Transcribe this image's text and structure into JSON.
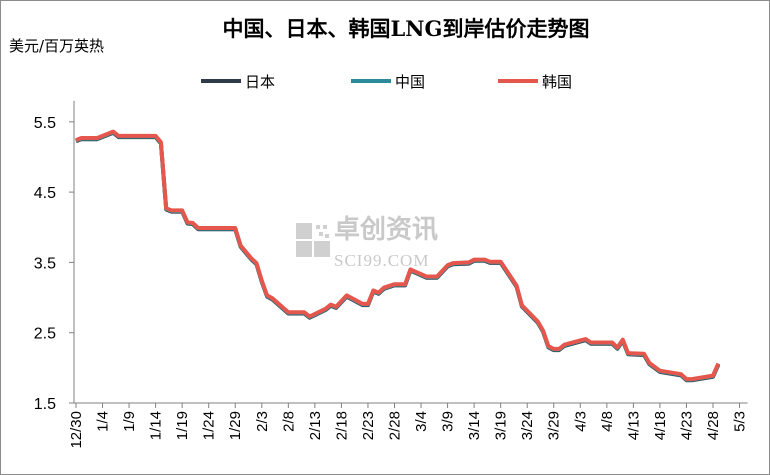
{
  "chart_data": {
    "type": "line",
    "title": "中国、日本、韩国LNG到岸估价走势图",
    "ylabel": "美元/百万英热",
    "ylim": [
      1.5,
      5.8
    ],
    "y_ticks": [
      "1.5",
      "2.5",
      "3.5",
      "4.5",
      "5.5"
    ],
    "x_ticks": [
      "12/30",
      "1/4",
      "1/9",
      "1/14",
      "1/19",
      "1/24",
      "1/29",
      "2/3",
      "2/8",
      "2/13",
      "2/18",
      "2/23",
      "2/28",
      "3/4",
      "3/9",
      "3/14",
      "3/19",
      "3/24",
      "3/29",
      "4/3",
      "4/8",
      "4/13",
      "4/18",
      "4/23",
      "4/28",
      "5/3"
    ],
    "x_tick_every": 5,
    "grid": false,
    "legend_position": "top",
    "watermark": {
      "cn": "卓创资讯",
      "en": "SCI99.COM"
    },
    "series": [
      {
        "name": "日本",
        "color": "#2f3b48"
      },
      {
        "name": "中国",
        "color": "#2a8c99"
      },
      {
        "name": "韩国",
        "color": "#e5574d"
      }
    ],
    "points": [
      [
        0,
        5.24
      ],
      [
        1,
        5.27
      ],
      [
        4,
        5.27
      ],
      [
        7,
        5.36
      ],
      [
        8,
        5.3
      ],
      [
        15,
        5.3
      ],
      [
        16,
        5.21
      ],
      [
        17,
        4.27
      ],
      [
        18,
        4.24
      ],
      [
        20,
        4.24
      ],
      [
        21,
        4.07
      ],
      [
        22,
        4.06
      ],
      [
        23,
        3.99
      ],
      [
        30,
        3.99
      ],
      [
        31,
        3.74
      ],
      [
        33,
        3.56
      ],
      [
        34,
        3.49
      ],
      [
        35,
        3.24
      ],
      [
        36,
        3.03
      ],
      [
        37,
        2.99
      ],
      [
        40,
        2.79
      ],
      [
        43,
        2.79
      ],
      [
        44,
        2.73
      ],
      [
        47,
        2.84
      ],
      [
        48,
        2.9
      ],
      [
        49,
        2.87
      ],
      [
        51,
        3.03
      ],
      [
        54,
        2.91
      ],
      [
        55,
        2.91
      ],
      [
        56,
        3.1
      ],
      [
        57,
        3.07
      ],
      [
        58,
        3.14
      ],
      [
        60,
        3.19
      ],
      [
        62,
        3.19
      ],
      [
        63,
        3.4
      ],
      [
        66,
        3.3
      ],
      [
        68,
        3.3
      ],
      [
        70,
        3.46
      ],
      [
        71,
        3.49
      ],
      [
        74,
        3.5
      ],
      [
        75,
        3.54
      ],
      [
        77,
        3.54
      ],
      [
        78,
        3.51
      ],
      [
        80,
        3.51
      ],
      [
        83,
        3.17
      ],
      [
        84,
        2.89
      ],
      [
        87,
        2.66
      ],
      [
        88,
        2.53
      ],
      [
        89,
        2.31
      ],
      [
        90,
        2.27
      ],
      [
        91,
        2.27
      ],
      [
        92,
        2.33
      ],
      [
        95,
        2.39
      ],
      [
        96,
        2.41
      ],
      [
        97,
        2.36
      ],
      [
        101,
        2.36
      ],
      [
        102,
        2.29
      ],
      [
        103,
        2.4
      ],
      [
        104,
        2.21
      ],
      [
        107,
        2.2
      ],
      [
        108,
        2.07
      ],
      [
        110,
        1.96
      ],
      [
        114,
        1.91
      ],
      [
        115,
        1.84
      ],
      [
        116,
        1.84
      ],
      [
        120,
        1.89
      ],
      [
        121,
        2.06
      ]
    ]
  }
}
